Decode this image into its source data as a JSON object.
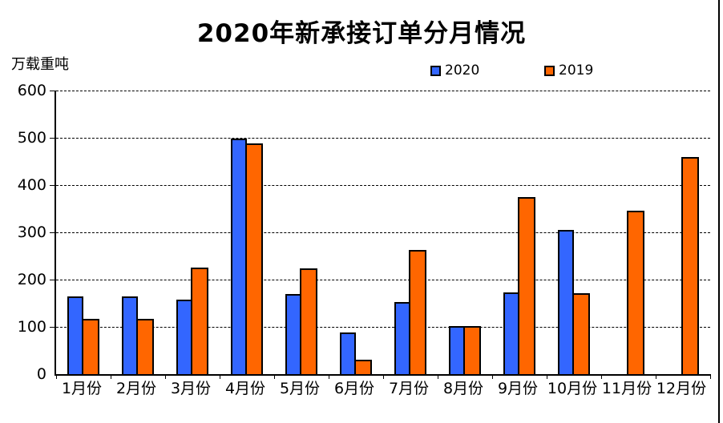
{
  "chart_data": {
    "type": "bar",
    "title": "2020年新承接订单分月情况",
    "ylabel": "万载重吨",
    "xlabel": "",
    "categories": [
      "1月份",
      "2月份",
      "3月份",
      "4月份",
      "5月份",
      "6月份",
      "7月份",
      "8月份",
      "9月份",
      "10月份",
      "11月份",
      "12月份"
    ],
    "series": [
      {
        "name": "2020",
        "color": "#3366FF",
        "values": [
          165,
          165,
          157,
          498,
          170,
          88,
          152,
          102,
          173,
          305,
          null,
          null
        ]
      },
      {
        "name": "2019",
        "color": "#FF6600",
        "values": [
          117,
          117,
          225,
          489,
          223,
          30,
          263,
          102,
          374,
          172,
          345,
          460
        ]
      }
    ],
    "ylim": [
      0,
      600
    ],
    "yticks": [
      0,
      100,
      200,
      300,
      400,
      500,
      600
    ],
    "grid": true,
    "gridline_style": "dashed",
    "legend_position": "top-center",
    "bar_border_color": "#000000",
    "text_color": "#000000",
    "background_color": "#FFFFFF"
  }
}
